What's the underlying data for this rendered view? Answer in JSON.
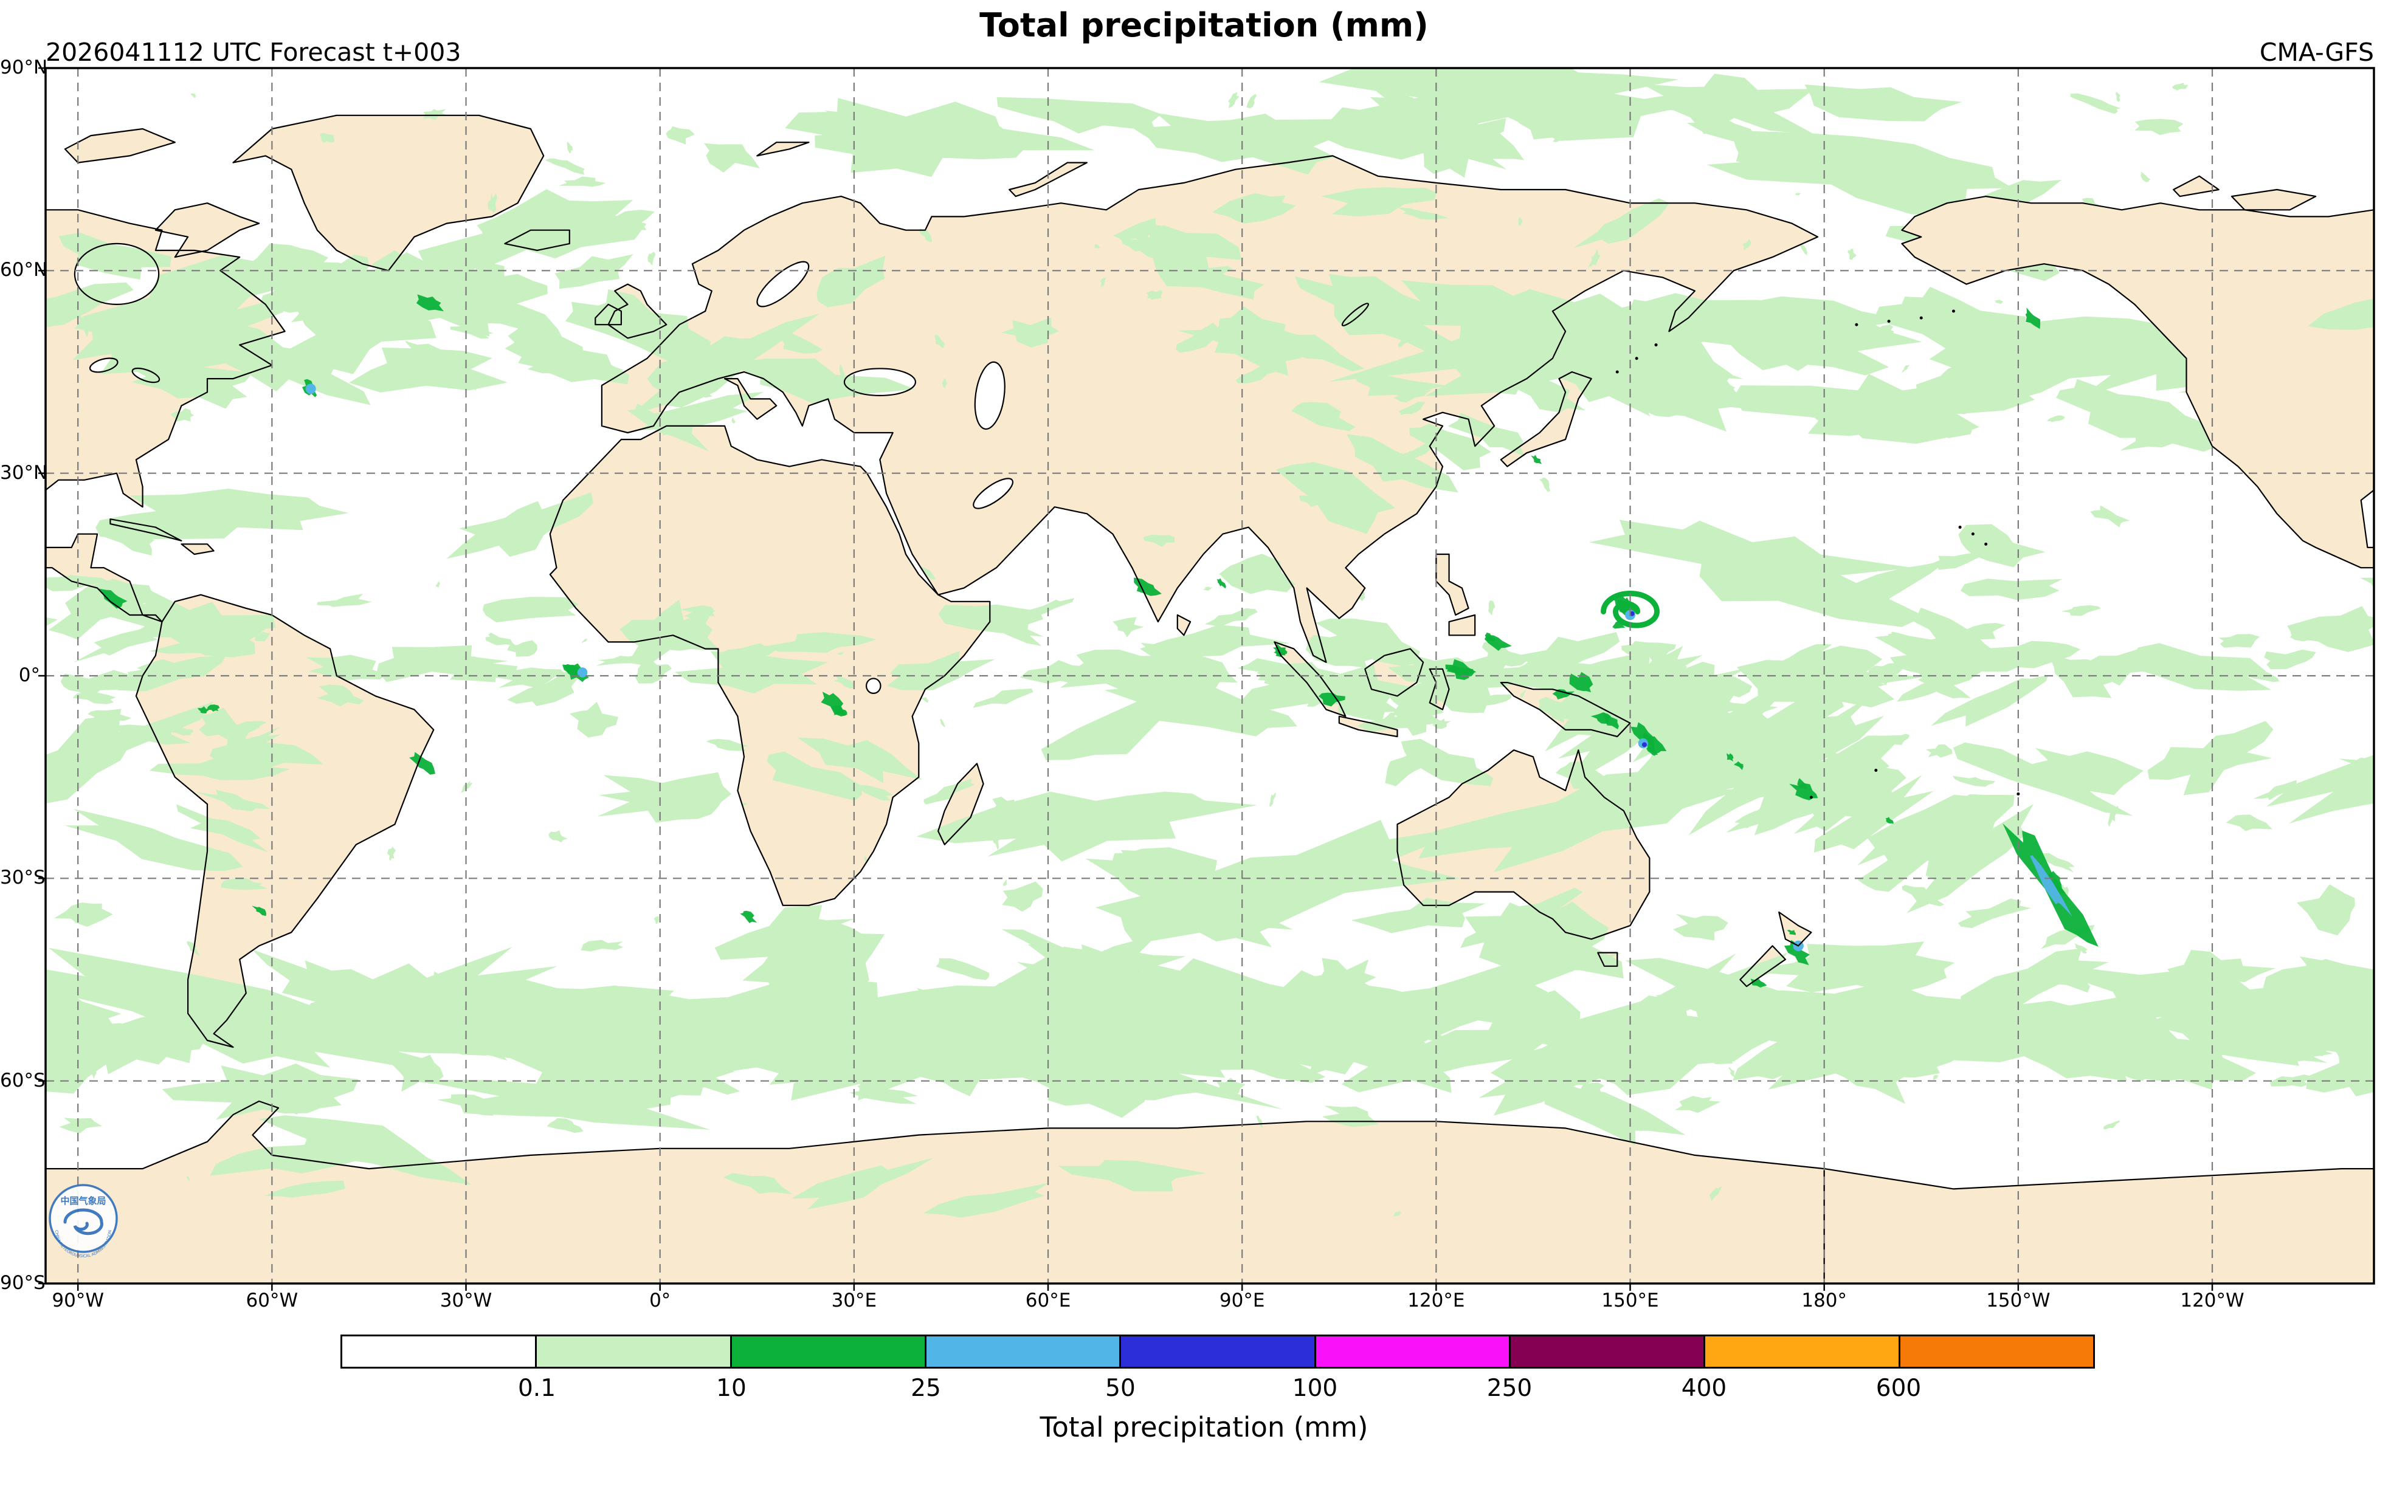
{
  "title": "Total precipitation (mm)",
  "subtitle_left": "2026041112 UTC Forecast t+003",
  "subtitle_right": "CMA-GFS",
  "axes": {
    "lat_ticks": [
      {
        "label": "90°N",
        "lat": 90
      },
      {
        "label": "60°N",
        "lat": 60
      },
      {
        "label": "30°N",
        "lat": 30
      },
      {
        "label": "0°",
        "lat": 0
      },
      {
        "label": "30°S",
        "lat": -30
      },
      {
        "label": "60°S",
        "lat": -60
      },
      {
        "label": "90°S",
        "lat": -90
      }
    ],
    "lon_ticks": [
      {
        "label": "90°W",
        "lon": -90
      },
      {
        "label": "60°W",
        "lon": -60
      },
      {
        "label": "30°W",
        "lon": -30
      },
      {
        "label": "0°",
        "lon": 0
      },
      {
        "label": "30°E",
        "lon": 30
      },
      {
        "label": "60°E",
        "lon": 60
      },
      {
        "label": "90°E",
        "lon": 90
      },
      {
        "label": "120°E",
        "lon": 120
      },
      {
        "label": "150°E",
        "lon": 150
      },
      {
        "label": "180°",
        "lon": 180
      },
      {
        "label": "150°W",
        "lon": 210
      },
      {
        "label": "120°W",
        "lon": 240
      }
    ]
  },
  "colorbar": {
    "label": "Total precipitation (mm)",
    "tick_labels": [
      "0.1",
      "10",
      "25",
      "50",
      "100",
      "250",
      "400",
      "600"
    ],
    "segment_colors": [
      "#ffffff",
      "#c9f0c1",
      "#0cb13a",
      "#52b5e8",
      "#2c2ed8",
      "#f911f9",
      "#850052",
      "#ffa712",
      "#f57a08"
    ]
  },
  "map_colors": {
    "land": "#f8e9cf",
    "ocean": "#ffffff",
    "coastline": "#000000",
    "gridline": "#7b7b7b"
  },
  "logo": {
    "cn": "中国气象局",
    "en": "CHINA METEOROLOGICAL ADMINISTRATION"
  }
}
